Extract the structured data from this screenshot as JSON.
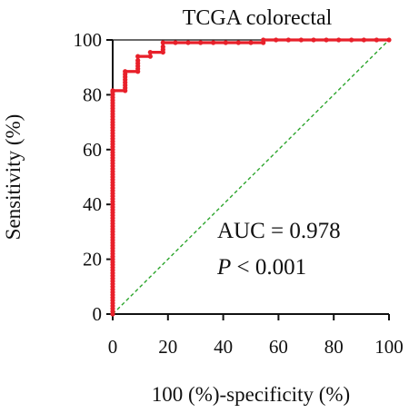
{
  "chart_data": {
    "type": "line",
    "title": "TCGA colorectal",
    "xlabel": "100 (%)-specificity (%)",
    "ylabel": "Sensitivity (%)",
    "xlim": [
      0,
      100
    ],
    "ylim": [
      0,
      100
    ],
    "xticks": [
      "0",
      "20",
      "40",
      "60",
      "80",
      "100"
    ],
    "yticks": [
      "0",
      "20",
      "40",
      "60",
      "80",
      "100"
    ],
    "grid": false,
    "annotations": {
      "auc_text": "AUC = 0.978",
      "p_prefix": "P",
      "p_suffix": " < 0.001"
    },
    "series": [
      {
        "x": [
          0,
          0,
          0,
          0,
          0,
          0,
          0,
          0,
          0,
          0,
          0,
          0,
          0,
          0,
          0,
          0,
          0,
          0,
          0,
          0,
          0,
          0,
          0,
          0,
          0,
          0,
          0,
          0,
          0,
          0,
          0,
          0,
          0,
          0,
          0,
          0,
          0,
          0,
          0,
          0,
          0,
          0,
          0,
          0,
          0,
          0,
          0,
          0,
          0,
          0,
          0,
          0,
          0,
          0,
          0,
          0,
          0,
          0,
          0,
          0,
          0,
          0,
          0,
          0,
          0,
          0,
          0,
          0,
          0,
          0,
          0,
          0,
          0,
          0,
          0,
          0,
          0,
          0,
          0,
          0,
          0,
          0,
          0,
          4.5,
          4.5,
          4.5,
          4.5,
          4.5,
          4.5,
          4.5,
          4.5,
          9.1,
          9.1,
          9.1,
          9.1,
          9.1,
          9.1,
          13.6,
          13.6,
          18.2,
          18.2,
          18.2,
          18.2,
          22.7,
          27.3,
          31.8,
          36.4,
          40.9,
          45.5,
          50.0,
          54.5,
          54.5,
          59.1,
          63.6,
          68.2,
          72.7,
          77.3,
          81.8,
          86.4,
          90.9,
          95.5,
          100
        ],
        "y": [
          0,
          1,
          2,
          3,
          4,
          5,
          6,
          7,
          8,
          9,
          10,
          11,
          12,
          13,
          14,
          15,
          16,
          17,
          18,
          19,
          20,
          21,
          22,
          23,
          24,
          25,
          26,
          27,
          28,
          29,
          30,
          31,
          32,
          33,
          34,
          35,
          36,
          37,
          38,
          39,
          40,
          41,
          42,
          43,
          44,
          45,
          46,
          47,
          48,
          49,
          50,
          51,
          52,
          53,
          54,
          55,
          56,
          57,
          58,
          59,
          60,
          61,
          62,
          63,
          64,
          65,
          66,
          67,
          68,
          69,
          70,
          71,
          72,
          73,
          74,
          75,
          76,
          77,
          78,
          79,
          80,
          81,
          81.5,
          81.5,
          82.5,
          83.5,
          84.5,
          85.5,
          86.5,
          87.5,
          88.5,
          88.5,
          89.5,
          90.5,
          91.5,
          92.5,
          94,
          94,
          95.5,
          95.5,
          96.5,
          97.5,
          99,
          99,
          99,
          99,
          99,
          99,
          99,
          99,
          99,
          100,
          100,
          100,
          100,
          100,
          100,
          100,
          100,
          100,
          100,
          100
        ]
      }
    ],
    "reference_line": {
      "x": [
        0,
        100
      ],
      "y": [
        0,
        100
      ]
    },
    "colors": {
      "roc": "#e8202a",
      "reference": "#2ca52c",
      "axis": "#111111"
    }
  }
}
